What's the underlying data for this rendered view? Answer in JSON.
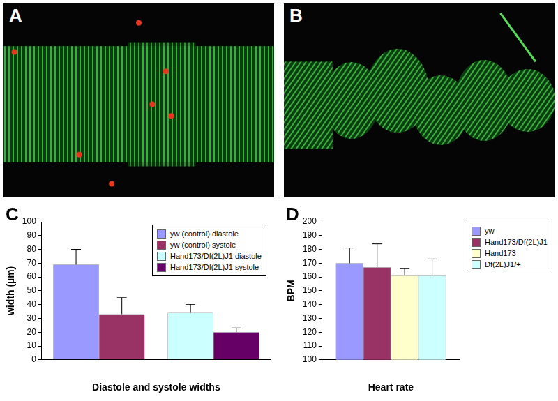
{
  "images": [
    {
      "label": "A"
    },
    {
      "label": "B"
    }
  ],
  "chart_data": [
    {
      "panel": "C",
      "type": "bar",
      "x_label": "Diastole and systole widths",
      "y_label": "width (µm)",
      "categories": [
        null,
        null
      ],
      "series": [
        {
          "name": "yw (control) diastole",
          "color": "#9999ff",
          "values": [
            69,
            null
          ],
          "errors": [
            11,
            null
          ]
        },
        {
          "name": "yw (control) systole",
          "color": "#993366",
          "values": [
            33,
            null
          ],
          "errors": [
            12,
            null
          ]
        },
        {
          "name": "Hand173/Df(2L)J1 diastole",
          "color": "#ccffff",
          "values": [
            null,
            34
          ],
          "errors": [
            null,
            6
          ]
        },
        {
          "name": "Hand173/Df(2L)J1 systole",
          "color": "#660066",
          "values": [
            null,
            20
          ],
          "errors": [
            null,
            3
          ]
        }
      ],
      "ylim": [
        0,
        100
      ],
      "yticks": [
        0,
        10,
        20,
        30,
        40,
        50,
        60,
        70,
        80,
        90,
        100
      ],
      "grid": false,
      "legend": "upper right"
    },
    {
      "panel": "D",
      "type": "bar",
      "x_label": "Heart rate",
      "y_label": "BPM",
      "categories": [
        null
      ],
      "series": [
        {
          "name": "yw",
          "color": "#9999ff",
          "values": [
            170
          ],
          "errors": [
            11
          ]
        },
        {
          "name": "Hand173/Df(2L)J1",
          "color": "#993366",
          "values": [
            167
          ],
          "errors": [
            17
          ]
        },
        {
          "name": "Hand173",
          "color": "#ffffcc",
          "values": [
            161
          ],
          "errors": [
            5
          ]
        },
        {
          "name": "Df(2L)J1/+",
          "color": "#ccffff",
          "values": [
            161
          ],
          "errors": [
            12
          ]
        }
      ],
      "ylim": [
        100,
        200
      ],
      "yticks": [
        100,
        110,
        120,
        130,
        140,
        150,
        160,
        170,
        180,
        190,
        200
      ],
      "grid": false,
      "legend": "right"
    }
  ]
}
